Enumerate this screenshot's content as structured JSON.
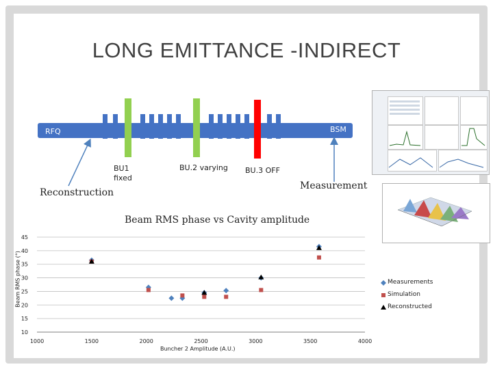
{
  "slide": {
    "title": "LONG EMITTANCE -INDIRECT",
    "rfq_label": "RFQ",
    "bsm_label": "BSM",
    "bu1_label_line1": "BU1",
    "bu1_label_line2": "fixed",
    "bu2_label": "BU.2 varying",
    "bu3_label": "BU.3 OFF",
    "reconstruction_label": "Reconstruction",
    "measurement_label": "Measurement",
    "colors": {
      "box_blue": "#4472c4",
      "cavity_green": "#92d050",
      "cavity_red": "#ff0000",
      "arrow": "#4f81bd"
    }
  },
  "chart_data": {
    "type": "scatter",
    "title": "Beam RMS phase vs Cavity amplitude",
    "xlabel": "Buncher 2 Amplitude (A.U.)",
    "ylabel": "Beam RMS phase (°)",
    "xlim": [
      1000,
      4000
    ],
    "ylim": [
      10,
      45
    ],
    "xticks": [
      1000,
      1500,
      2000,
      2500,
      3000,
      3500,
      4000
    ],
    "yticks": [
      10,
      15,
      20,
      25,
      30,
      35,
      40,
      45
    ],
    "grid": "horizontal",
    "legend": "right",
    "series": [
      {
        "name": "Measurements",
        "color": "#4f81bd",
        "marker": "diamond",
        "points": [
          [
            1500,
            36.5
          ],
          [
            2020,
            26.5
          ],
          [
            2230,
            22.5
          ],
          [
            2330,
            22.5
          ],
          [
            2530,
            24.5
          ],
          [
            2730,
            25.3
          ],
          [
            3050,
            30.0
          ],
          [
            3580,
            41.5
          ]
        ]
      },
      {
        "name": "Simulation",
        "color": "#c0504d",
        "marker": "square",
        "points": [
          [
            1500,
            36.0
          ],
          [
            2020,
            25.5
          ],
          [
            2330,
            23.5
          ],
          [
            2530,
            23.0
          ],
          [
            2730,
            23.0
          ],
          [
            3050,
            25.5
          ],
          [
            3580,
            37.5
          ]
        ]
      },
      {
        "name": "Reconstructed",
        "color": "#000000",
        "marker": "triangle",
        "points": [
          [
            1500,
            36.0
          ],
          [
            2530,
            24.5
          ],
          [
            3050,
            30.2
          ],
          [
            3580,
            41.0
          ]
        ]
      }
    ]
  }
}
